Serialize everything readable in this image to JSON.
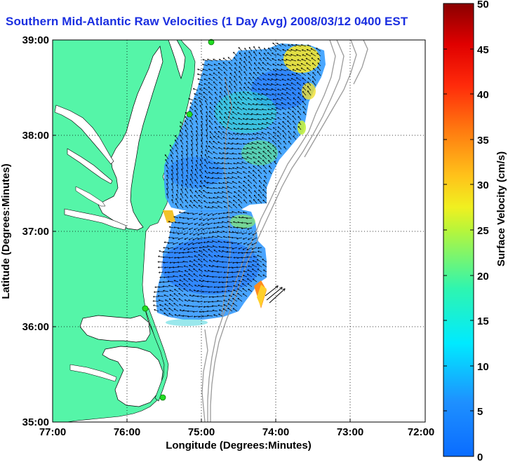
{
  "title": "Southern Mid-Atlantic Raw Velocities (1 Day Avg) 2008/03/12 0400 EST",
  "x_axis": {
    "label": "Longitude (Degrees:Minutes)",
    "ticks": [
      "77:00",
      "76:00",
      "75:00",
      "74:00",
      "73:00",
      "72:00"
    ]
  },
  "y_axis": {
    "label": "Latitude (Degrees:Minutes)",
    "ticks": [
      "39:00",
      "38:00",
      "37:00",
      "36:00",
      "35:00"
    ]
  },
  "colorbar": {
    "label": "Surface Velocity (cm/s)",
    "ticks": [
      "50",
      "45",
      "40",
      "35",
      "30",
      "25",
      "20",
      "15",
      "10",
      "5",
      "0"
    ],
    "range": [
      0,
      50
    ],
    "colormap": "jet"
  },
  "map": {
    "extent_lon": [
      -77,
      -72
    ],
    "extent_lat": [
      35,
      39
    ],
    "grid": "dotted",
    "land_color": "#55f5a8",
    "water_color": "#ffffff",
    "station_color": "#22dd22",
    "stations": 4
  }
}
